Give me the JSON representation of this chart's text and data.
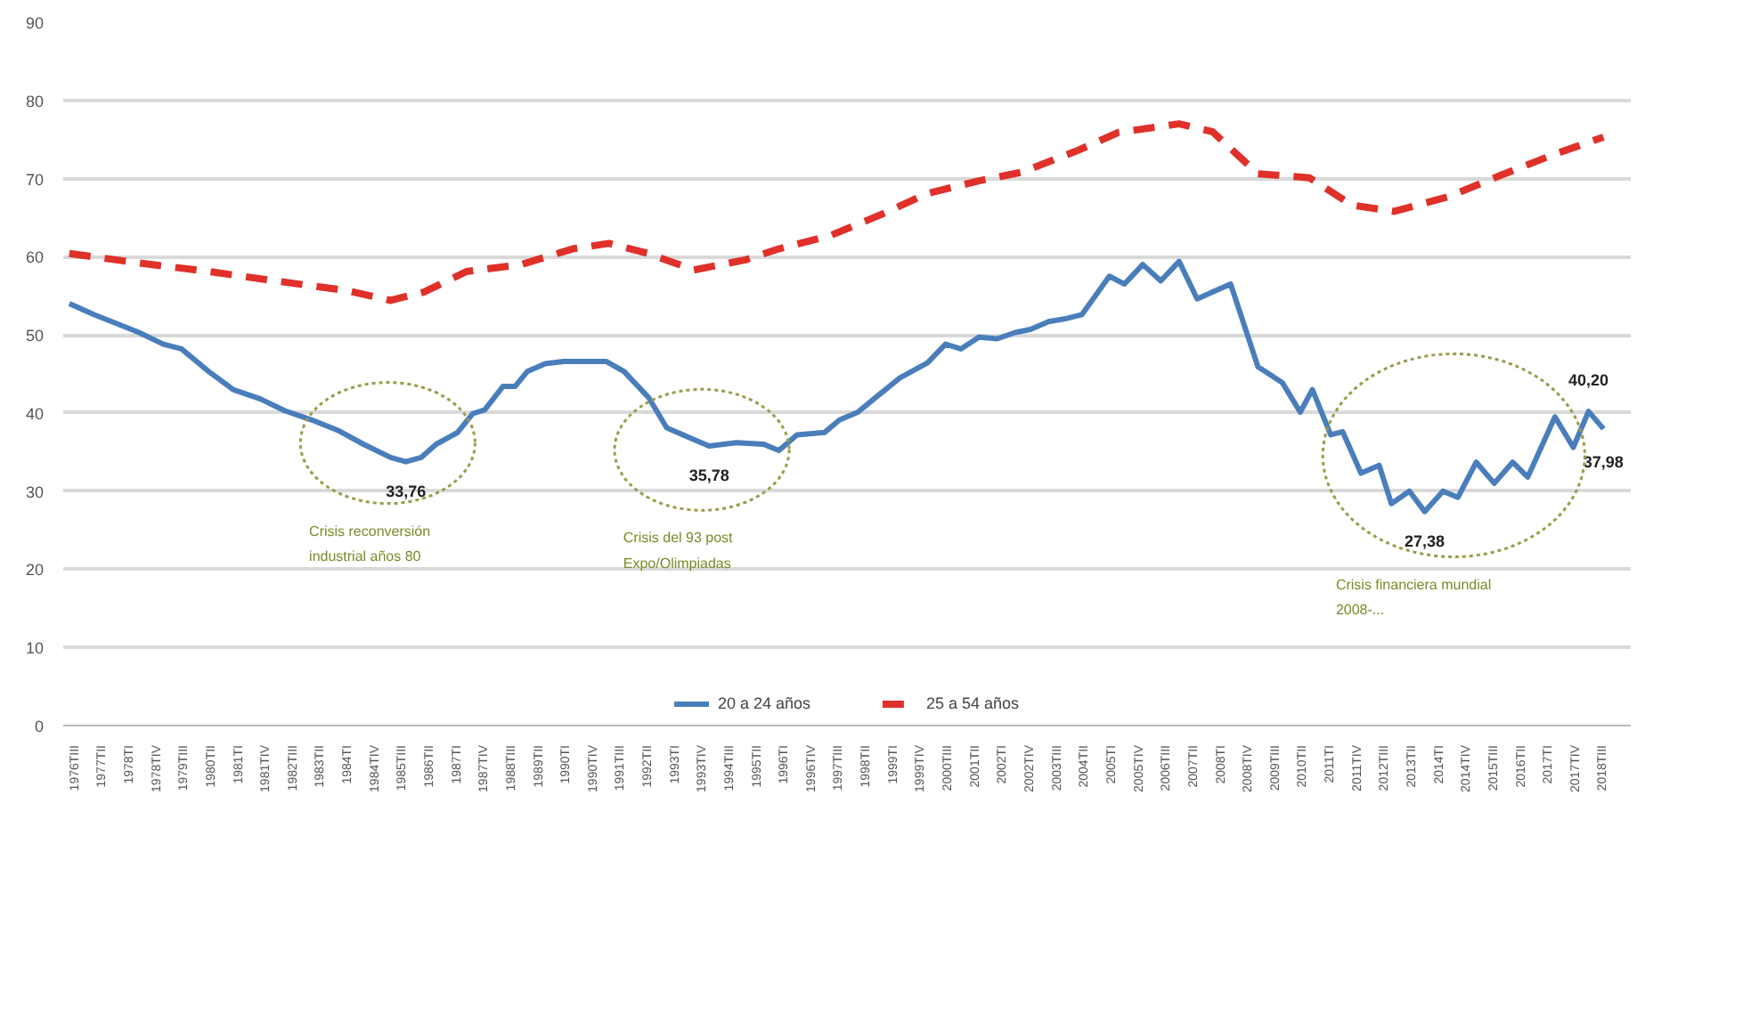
{
  "chart_data": {
    "type": "line",
    "series": [
      {
        "name": "20 a 24 años",
        "color": "#4a7ebb",
        "line_style": "solid",
        "x": [
          "1976-05",
          "1977-01",
          "1977-07",
          "1978-04",
          "1978-12",
          "1979-06",
          "1980-03",
          "1980-11",
          "1981-08",
          "1982-04",
          "1983-01",
          "1983-10",
          "1984-06",
          "1985-03",
          "1985-08",
          "1986-01",
          "1986-06",
          "1987-01",
          "1987-06",
          "1987-10",
          "1988-04",
          "1988-08",
          "1988-12",
          "1989-06",
          "1989-12",
          "1991-02",
          "1991-08",
          "1992-04",
          "1992-10",
          "1993-07",
          "1993-12",
          "1994-09",
          "1995-06",
          "1995-11",
          "1996-05",
          "1997-02",
          "1997-07",
          "1998-01",
          "1998-07",
          "1999-03",
          "1999-12",
          "2000-06",
          "2000-11",
          "2001-05",
          "2001-11",
          "2002-05",
          "2002-10",
          "2003-04",
          "2003-10",
          "2004-03",
          "2004-12",
          "2005-05",
          "2005-11",
          "2006-05",
          "2006-11",
          "2007-05",
          "2008-04",
          "2009-01",
          "2009-09",
          "2010-03",
          "2010-07",
          "2011-01",
          "2011-05",
          "2011-11",
          "2012-05",
          "2012-09",
          "2013-03",
          "2013-08",
          "2014-02",
          "2014-07",
          "2015-01",
          "2015-07",
          "2016-01",
          "2016-06",
          "2017-03",
          "2017-09",
          "2018-02",
          "2018-07"
        ],
        "values": [
          54.0,
          52.6,
          51.7,
          50.3,
          48.8,
          48.2,
          45.3,
          43.0,
          41.8,
          40.3,
          39.1,
          37.7,
          36.0,
          34.3,
          33.76,
          34.3,
          36.0,
          37.5,
          39.9,
          40.4,
          43.4,
          43.4,
          45.3,
          46.3,
          46.6,
          46.6,
          45.3,
          42.0,
          38.1,
          36.6,
          35.78,
          36.2,
          36.0,
          35.2,
          37.2,
          37.5,
          39.1,
          40.1,
          42.0,
          44.5,
          46.4,
          48.8,
          48.2,
          49.7,
          49.5,
          50.3,
          50.7,
          51.7,
          52.1,
          52.6,
          57.5,
          56.5,
          59.0,
          56.9,
          59.4,
          54.6,
          56.5,
          45.9,
          43.9,
          40.1,
          43.0,
          37.2,
          37.6,
          32.3,
          33.3,
          28.4,
          30.0,
          27.38,
          30.0,
          29.2,
          33.7,
          31.0,
          33.7,
          31.8,
          39.5,
          35.6,
          40.2,
          37.98
        ]
      },
      {
        "name": "25 a 54 años",
        "color": "#e0302a",
        "line_style": "dashed",
        "x": [
          "1976-05",
          "1978-04",
          "1980-03",
          "1982-01",
          "1983-12",
          "1985-03",
          "1986-02",
          "1987-04",
          "1988-10",
          "1990-03",
          "1991-03",
          "1992-04",
          "1993-07",
          "1994-12",
          "1995-11",
          "1997-04",
          "1998-10",
          "1999-12",
          "2001-05",
          "2002-07",
          "2004-01",
          "2005-03",
          "2006-11",
          "2007-10",
          "2009-01",
          "2010-06",
          "2011-08",
          "2012-10",
          "2014-04",
          "2015-09",
          "2017-02",
          "2018-07"
        ],
        "values": [
          60.4,
          59.2,
          58.1,
          56.9,
          55.7,
          54.4,
          55.5,
          58.1,
          59.0,
          61.0,
          61.7,
          60.4,
          58.3,
          59.6,
          61.0,
          62.7,
          65.6,
          68.1,
          69.7,
          70.8,
          73.5,
          75.9,
          77.0,
          76.0,
          70.6,
          70.1,
          66.6,
          65.8,
          67.7,
          70.4,
          73.0,
          75.3
        ]
      }
    ],
    "xlim": [
      "1976-03",
      "2019-04"
    ],
    "ylim": [
      0,
      90
    ],
    "yticks": [
      0,
      10,
      20,
      30,
      40,
      50,
      60,
      70,
      80,
      90
    ],
    "xticks": [
      {
        "value": "1976-07",
        "label": "1976TIII"
      },
      {
        "value": "1977-04",
        "label": "1977TII"
      },
      {
        "value": "1978-01",
        "label": "1978TI"
      },
      {
        "value": "1978-10",
        "label": "1978TIV"
      },
      {
        "value": "1979-07",
        "label": "1979TIII"
      },
      {
        "value": "1980-04",
        "label": "1980TII"
      },
      {
        "value": "1981-01",
        "label": "1981TI"
      },
      {
        "value": "1981-10",
        "label": "1981TIV"
      },
      {
        "value": "1982-07",
        "label": "1982TIII"
      },
      {
        "value": "1983-04",
        "label": "1983TII"
      },
      {
        "value": "1984-01",
        "label": "1984TI"
      },
      {
        "value": "1984-10",
        "label": "1984TIV"
      },
      {
        "value": "1985-07",
        "label": "1985TIII"
      },
      {
        "value": "1986-04",
        "label": "1986TII"
      },
      {
        "value": "1987-01",
        "label": "1987TI"
      },
      {
        "value": "1987-10",
        "label": "1987TIV"
      },
      {
        "value": "1988-07",
        "label": "1988TIII"
      },
      {
        "value": "1989-04",
        "label": "1989TII"
      },
      {
        "value": "1990-01",
        "label": "1990TI"
      },
      {
        "value": "1990-10",
        "label": "1990TIV"
      },
      {
        "value": "1991-07",
        "label": "1991TIII"
      },
      {
        "value": "1992-04",
        "label": "1992TII"
      },
      {
        "value": "1993-01",
        "label": "1993TI"
      },
      {
        "value": "1993-10",
        "label": "1993TIV"
      },
      {
        "value": "1994-07",
        "label": "1994TIII"
      },
      {
        "value": "1995-04",
        "label": "1995TII"
      },
      {
        "value": "1996-01",
        "label": "1996TI"
      },
      {
        "value": "1996-10",
        "label": "1996TIV"
      },
      {
        "value": "1997-07",
        "label": "1997TIII"
      },
      {
        "value": "1998-04",
        "label": "1998TII"
      },
      {
        "value": "1999-01",
        "label": "1999TI"
      },
      {
        "value": "1999-10",
        "label": "1999TIV"
      },
      {
        "value": "2000-07",
        "label": "2000TIII"
      },
      {
        "value": "2001-04",
        "label": "2001TII"
      },
      {
        "value": "2002-01",
        "label": "2002TI"
      },
      {
        "value": "2002-10",
        "label": "2002TIV"
      },
      {
        "value": "2003-07",
        "label": "2003TIII"
      },
      {
        "value": "2004-04",
        "label": "2004TII"
      },
      {
        "value": "2005-01",
        "label": "2005TI"
      },
      {
        "value": "2005-10",
        "label": "2005TIV"
      },
      {
        "value": "2006-07",
        "label": "2006TIII"
      },
      {
        "value": "2007-04",
        "label": "2007TII"
      },
      {
        "value": "2008-01",
        "label": "2008TI"
      },
      {
        "value": "2008-10",
        "label": "2008TIV"
      },
      {
        "value": "2009-07",
        "label": "2009TIII"
      },
      {
        "value": "2010-04",
        "label": "2010TII"
      },
      {
        "value": "2011-01",
        "label": "2011TI"
      },
      {
        "value": "2011-10",
        "label": "2011TIV"
      },
      {
        "value": "2012-07",
        "label": "2012TIII"
      },
      {
        "value": "2013-04",
        "label": "2013TII"
      },
      {
        "value": "2014-01",
        "label": "2014TI"
      },
      {
        "value": "2014-10",
        "label": "2014TIV"
      },
      {
        "value": "2015-07",
        "label": "2015TIII"
      },
      {
        "value": "2016-04",
        "label": "2016TII"
      },
      {
        "value": "2017-01",
        "label": "2017TI"
      },
      {
        "value": "2017-10",
        "label": "2017TIV"
      },
      {
        "value": "2018-07",
        "label": "2018TIII"
      }
    ],
    "grid": "y",
    "legend": "bottom",
    "marker": "none",
    "annotations": [
      "Crisis reconversión\nindustrial años 80",
      "Crisis del 93 post\nExpo/Olimpiadas",
      "Crisis financiera mundial\n2008-...",
      {
        "text": "33,76",
        "x": "1985-08",
        "y": 33.76
      },
      {
        "text": "35,78",
        "x": "1993-12",
        "y": 35.78
      },
      {
        "text": "27,38",
        "x": "2013-08",
        "y": 27.38
      },
      {
        "text": "40,20",
        "x": "2018-02",
        "y": 40.2
      },
      {
        "text": "37,98",
        "x": "2018-07",
        "y": 37.98
      }
    ]
  }
}
